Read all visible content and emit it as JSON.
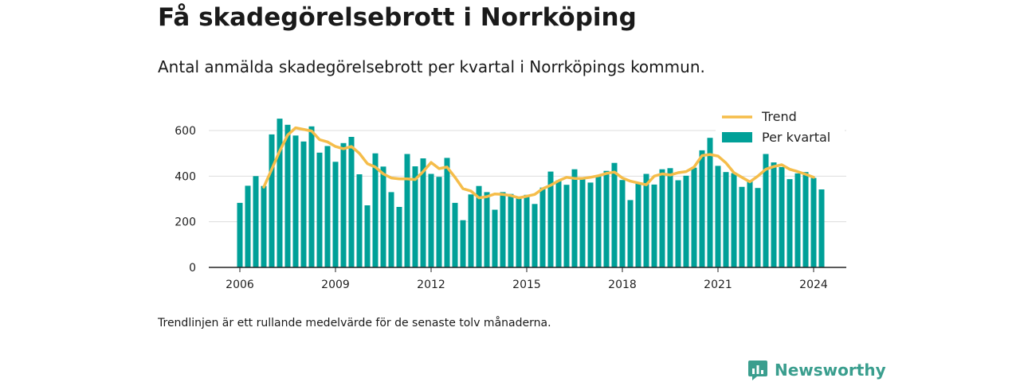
{
  "header": {
    "title": "Få skadegörelsebrott i Norrköping",
    "subtitle": "Antal anmälda skadegörelsebrott per kvartal i Norrköpings kommun."
  },
  "footer": {
    "note": "Trendlinjen är ett rullande medelvärde för de senaste tolv månaderna.",
    "brand": "Newsworthy"
  },
  "colors": {
    "bars": "#00a098",
    "trend": "#f5bd4a",
    "axis": "#222222",
    "grid": "#dddddd",
    "brand": "#3a9e8e"
  },
  "icons": {
    "logo": "bar-chart-speech-bubble-icon"
  },
  "chart_data": {
    "type": "bar",
    "title": "Få skadegörelsebrott i Norrköping",
    "subtitle": "Antal anmälda skadegörelsebrott per kvartal i Norrköpings kommun.",
    "ylim": [
      0,
      700
    ],
    "yticks": [
      0,
      200,
      400,
      600
    ],
    "xticks": [
      "2006",
      "2009",
      "2012",
      "2015",
      "2018",
      "2021",
      "2024"
    ],
    "x_start": 2006.0,
    "x_step": 0.25,
    "grid": true,
    "legend_position": "top-right",
    "series": [
      {
        "name": "Per kvartal",
        "type": "bar",
        "values": [
          283,
          358,
          400,
          357,
          583,
          652,
          625,
          578,
          552,
          618,
          503,
          532,
          463,
          545,
          572,
          408,
          272,
          500,
          442,
          330,
          265,
          497,
          443,
          478,
          410,
          397,
          480,
          283,
          207,
          320,
          357,
          330,
          253,
          330,
          322,
          310,
          318,
          278,
          350,
          420,
          382,
          362,
          430,
          395,
          372,
          400,
          423,
          458,
          383,
          295,
          372,
          410,
          363,
          430,
          435,
          382,
          402,
          437,
          513,
          568,
          445,
          418,
          413,
          353,
          380,
          348,
          497,
          460,
          440,
          387,
          412,
          418,
          392,
          342
        ]
      },
      {
        "name": "Trend",
        "type": "line",
        "x": [
          2006.75,
          2007.0,
          2007.25,
          2007.5,
          2007.75,
          2008.0,
          2008.25,
          2008.5,
          2008.75,
          2009.0,
          2009.25,
          2009.5,
          2009.75,
          2010.0,
          2010.25,
          2010.5,
          2010.75,
          2011.0,
          2011.25,
          2011.5,
          2011.75,
          2012.0,
          2012.25,
          2012.5,
          2012.75,
          2013.0,
          2013.25,
          2013.5,
          2013.75,
          2014.0,
          2014.25,
          2014.5,
          2014.75,
          2015.0,
          2015.25,
          2015.5,
          2015.75,
          2016.0,
          2016.25,
          2016.5,
          2016.75,
          2017.0,
          2017.25,
          2017.5,
          2017.75,
          2018.0,
          2018.25,
          2018.5,
          2018.75,
          2019.0,
          2019.25,
          2019.5,
          2019.75,
          2020.0,
          2020.25,
          2020.5,
          2020.75,
          2021.0,
          2021.25,
          2021.5,
          2021.75,
          2022.0,
          2022.25,
          2022.5,
          2022.75,
          2023.0,
          2023.25,
          2023.5,
          2023.75,
          2024.0
        ],
        "values": [
          352,
          430,
          510,
          580,
          612,
          605,
          598,
          560,
          550,
          530,
          520,
          530,
          500,
          455,
          440,
          410,
          392,
          388,
          388,
          385,
          420,
          460,
          433,
          440,
          395,
          345,
          335,
          305,
          310,
          322,
          320,
          315,
          305,
          312,
          320,
          345,
          360,
          380,
          395,
          390,
          390,
          395,
          402,
          412,
          418,
          392,
          378,
          370,
          362,
          400,
          410,
          405,
          415,
          420,
          440,
          490,
          495,
          488,
          458,
          415,
          395,
          375,
          400,
          430,
          442,
          450,
          430,
          420,
          408,
          395
        ]
      }
    ]
  }
}
